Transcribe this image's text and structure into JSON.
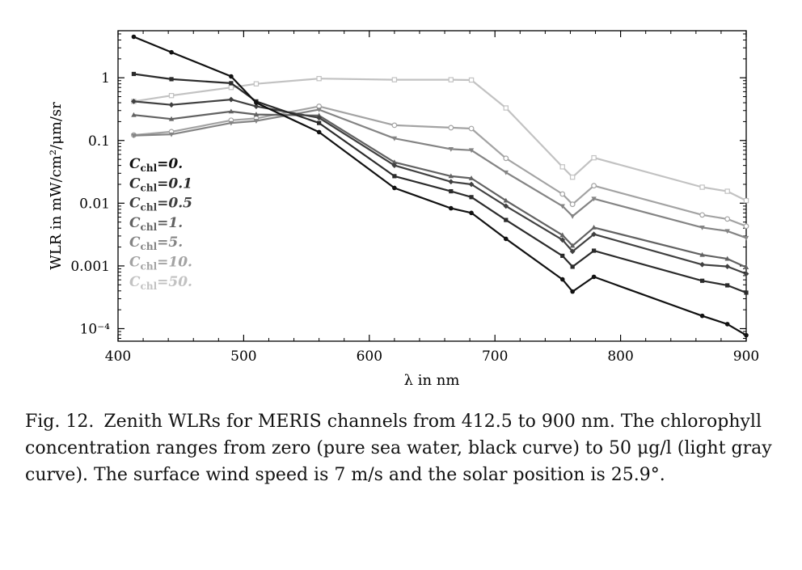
{
  "chart_data": {
    "type": "line",
    "title": "",
    "xlabel": "λ in nm",
    "ylabel": "WLR in mW/cm²/μm/sr",
    "xlim": [
      400,
      900
    ],
    "ylim_log10": [
      -4.2,
      0.75
    ],
    "yscale": "log",
    "xticks": [
      400,
      500,
      600,
      700,
      800,
      900
    ],
    "xtick_labels": [
      "400",
      "500",
      "600",
      "700",
      "800",
      "900"
    ],
    "yticks": [
      1,
      0.1,
      0.01,
      0.001,
      0.0001
    ],
    "ytick_labels": [
      "1",
      "0.1",
      "0.01",
      "0.001",
      "10⁻⁴"
    ],
    "grid": false,
    "legend_position": "left",
    "x": [
      412.5,
      442.5,
      490,
      510,
      560,
      620,
      665,
      681.25,
      708.75,
      753.75,
      761.75,
      778.75,
      865,
      885,
      900
    ],
    "series": [
      {
        "legend_base": "C",
        "legend_sub": "chl",
        "legend_value": "=0.",
        "color": "#111111",
        "marker": "circle",
        "values": [
          4.5,
          2.55,
          1.05,
          0.4,
          0.136,
          0.0175,
          0.0083,
          0.007,
          0.0027,
          0.00061,
          0.00039,
          0.00067,
          0.00016,
          0.000118,
          7.85e-05
        ]
      },
      {
        "legend_base": "C",
        "legend_sub": "chl",
        "legend_value": "=0.1",
        "color": "#2b2b2b",
        "marker": "square",
        "values": [
          1.15,
          0.95,
          0.82,
          0.42,
          0.19,
          0.027,
          0.0155,
          0.0125,
          0.0054,
          0.00145,
          0.00097,
          0.00175,
          0.00058,
          0.00049,
          0.000375
        ]
      },
      {
        "legend_base": "C",
        "legend_sub": "chl",
        "legend_value": "=0.5",
        "color": "#404040",
        "marker": "diamond",
        "values": [
          0.42,
          0.37,
          0.45,
          0.35,
          0.23,
          0.04,
          0.022,
          0.02,
          0.009,
          0.0026,
          0.0017,
          0.0032,
          0.00105,
          0.00098,
          0.00075
        ]
      },
      {
        "legend_base": "C",
        "legend_sub": "chl",
        "legend_value": "=1.",
        "color": "#626262",
        "marker": "triangle",
        "values": [
          0.255,
          0.22,
          0.29,
          0.26,
          0.25,
          0.045,
          0.027,
          0.025,
          0.011,
          0.0031,
          0.0021,
          0.0041,
          0.0015,
          0.0013,
          0.00095
        ]
      },
      {
        "legend_base": "C",
        "legend_sub": "chl",
        "legend_value": "=5.",
        "color": "#848484",
        "marker": "down-triangle",
        "values": [
          0.12,
          0.125,
          0.19,
          0.205,
          0.31,
          0.108,
          0.073,
          0.07,
          0.031,
          0.009,
          0.0062,
          0.0118,
          0.0041,
          0.0036,
          0.0028
        ]
      },
      {
        "legend_base": "C",
        "legend_sub": "chl",
        "legend_value": "=10.",
        "color": "#a3a3a3",
        "marker": "open-circle",
        "values": [
          0.122,
          0.138,
          0.21,
          0.225,
          0.35,
          0.175,
          0.16,
          0.155,
          0.052,
          0.014,
          0.0096,
          0.019,
          0.0065,
          0.0056,
          0.0043
        ]
      },
      {
        "legend_base": "C",
        "legend_sub": "chl",
        "legend_value": "=50.",
        "color": "#c2c2c2",
        "marker": "open-square",
        "values": [
          0.42,
          0.52,
          0.7,
          0.8,
          0.97,
          0.93,
          0.93,
          0.92,
          0.33,
          0.038,
          0.026,
          0.053,
          0.018,
          0.0155,
          0.011
        ]
      }
    ]
  },
  "caption": {
    "label": "Fig. 12.",
    "text": "Zenith WLRs for MERIS channels from 412.5 to 900 nm. The chlorophyll concentration ranges from zero (pure sea water, black curve) to 50 μg/l (light gray curve). The surface wind speed is 7 m/s and the solar position is 25.9°."
  }
}
